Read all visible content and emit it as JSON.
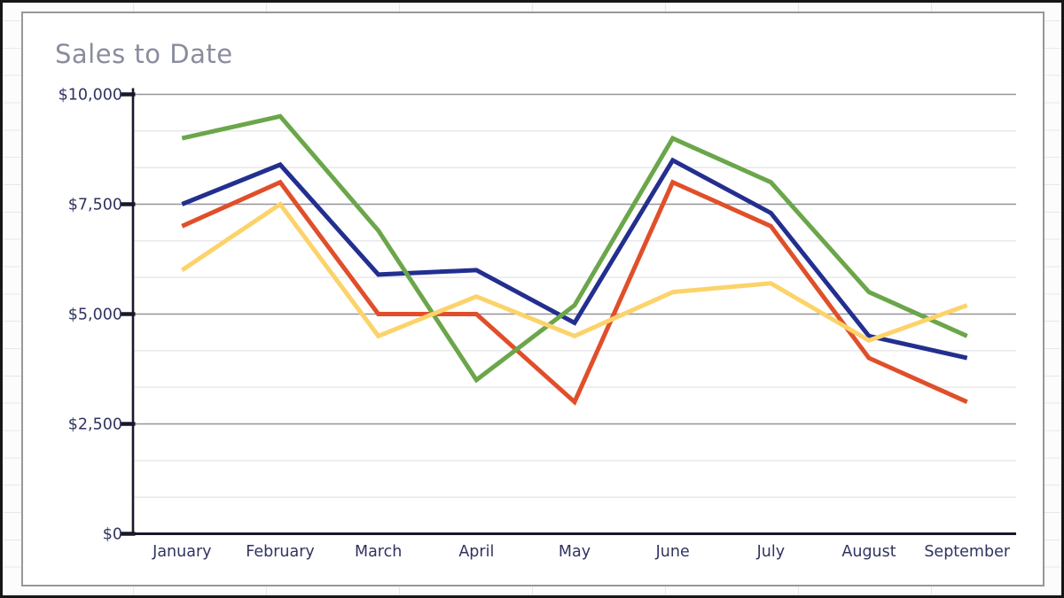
{
  "title": {
    "text": "Sales to Date",
    "color": "#8a8c9e"
  },
  "chart_data": {
    "type": "line",
    "title": "Sales to Date",
    "categories": [
      "January",
      "February",
      "March",
      "April",
      "May",
      "June",
      "July",
      "August",
      "September"
    ],
    "series": [
      {
        "name": "green",
        "color": "#6ba64a",
        "values": [
          9000,
          9500,
          6900,
          3500,
          5200,
          9000,
          8000,
          5500,
          4500
        ]
      },
      {
        "name": "blue",
        "color": "#232f8f",
        "values": [
          7500,
          8400,
          5900,
          6000,
          4800,
          8500,
          7300,
          4500,
          4000
        ]
      },
      {
        "name": "red",
        "color": "#e04f2a",
        "values": [
          7000,
          8000,
          5000,
          5000,
          3000,
          8000,
          7000,
          4000,
          3000
        ]
      },
      {
        "name": "yellow",
        "color": "#fcd36a",
        "values": [
          6000,
          7500,
          4500,
          5400,
          4500,
          5500,
          5700,
          4400,
          5200
        ]
      }
    ],
    "y_axis": {
      "min": 0,
      "max": 10000,
      "major_step": 2500,
      "minor_divisions_per_major": 3,
      "tick_labels": [
        "$10,000",
        "$7,500",
        "$5,000",
        "$2,500",
        "$0"
      ]
    },
    "x_axis": {
      "tick_labels": [
        "January",
        "February",
        "March",
        "April",
        "May",
        "June",
        "July",
        "August",
        "September"
      ]
    },
    "legend": "none",
    "grid": {
      "major": true,
      "minor": true
    }
  },
  "style": {
    "axis_color": "#18182a",
    "tick_label_color": "#2f3360",
    "major_grid_color": "#94949a",
    "minor_grid_color": "#dedee2",
    "card_border_color": "#97979c",
    "sheet_grid_color": "#e8e8eb"
  }
}
